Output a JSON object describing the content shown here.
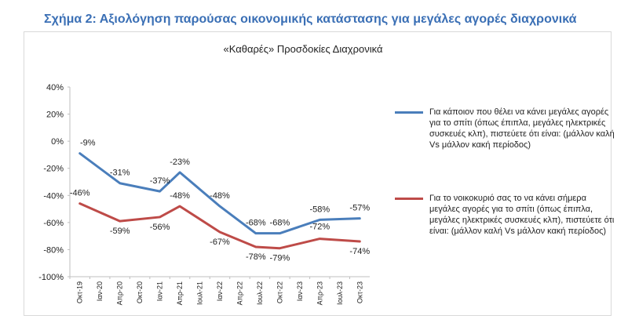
{
  "figure_title": "Σχήμα 2: Αξιολόγηση παρούσας οικονομικής κατάστασης για μεγάλες αγορές διαχρονικά",
  "chart_data": {
    "type": "line",
    "title": "«Καθαρές» Προσδοκίες Διαχρονικά",
    "categories": [
      "Οκτ-19",
      "Ιαν-20",
      "Απρ-20",
      "Οκτ-20",
      "Ιαν-21",
      "Απρ-21",
      "Ιουλ-21",
      "Ιαν-22",
      "Απρ-22",
      "Ιουλ-22",
      "Οκτ-22",
      "Ιαν-23",
      "Απρ-23",
      "Ιουλ-23",
      "Οκτ-23"
    ],
    "ylim": [
      -100,
      40
    ],
    "yticks": [
      40,
      20,
      0,
      -20,
      -40,
      -60,
      -80,
      -100
    ],
    "ytick_labels": [
      "40%",
      "20%",
      "0%",
      "-20%",
      "-40%",
      "-60%",
      "-80%",
      "-100%"
    ],
    "series": [
      {
        "name": "Για κάποιον που θέλει να κάνει μεγάλες αγορές για το σπίτι (όπως έπιπλα, μεγάλες ηλεκτρικές συσκευές κλπ), πιστεύετε ότι είναι: (μάλλον καλή Vs μάλλον κακή περίοδος)",
        "color": "#4a7ebb",
        "points": [
          {
            "idx": 0,
            "value": -9,
            "label": "-9%"
          },
          {
            "idx": 2,
            "value": -31,
            "label": "-31%"
          },
          {
            "idx": 4,
            "value": -37,
            "label": "-37%"
          },
          {
            "idx": 5,
            "value": -23,
            "label": "-23%"
          },
          {
            "idx": 7,
            "value": -48,
            "label": "-48%"
          },
          {
            "idx": 8.8,
            "value": -68,
            "label": "-68%"
          },
          {
            "idx": 10,
            "value": -68,
            "label": "-68%"
          },
          {
            "idx": 12,
            "value": -58,
            "label": "-58%"
          },
          {
            "idx": 14,
            "value": -57,
            "label": "-57%"
          }
        ]
      },
      {
        "name": "Για το νοικοκυριό σας το να κάνει σήμερα μεγάλες αγορές για το σπίτι (όπως έπιπλα, μεγάλες ηλεκτρικές συσκευές κλπ), πιστεύετε ότι είναι: (μάλλον καλή Vs μάλλον κακή περίοδος)",
        "color": "#be4b48",
        "points": [
          {
            "idx": 0,
            "value": -46,
            "label": "-46%"
          },
          {
            "idx": 2,
            "value": -59,
            "label": "-59%"
          },
          {
            "idx": 4,
            "value": -56,
            "label": "-56%"
          },
          {
            "idx": 5,
            "value": -48,
            "label": "-48%"
          },
          {
            "idx": 7,
            "value": -67,
            "label": "-67%"
          },
          {
            "idx": 8.8,
            "value": -78,
            "label": "-78%"
          },
          {
            "idx": 10,
            "value": -79,
            "label": "-79%"
          },
          {
            "idx": 12,
            "value": -72,
            "label": "-72%"
          },
          {
            "idx": 14,
            "value": -74,
            "label": "-74%"
          }
        ]
      }
    ]
  }
}
